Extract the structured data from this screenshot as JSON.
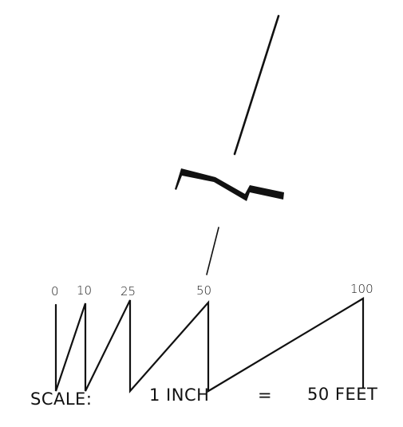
{
  "scale_bar": {
    "ticks": [
      "0",
      "10",
      "25",
      "50",
      "100"
    ]
  },
  "caption": {
    "label": "SCALE:",
    "lhs": "1 INCH",
    "equals": "=",
    "rhs": "50 FEET"
  }
}
